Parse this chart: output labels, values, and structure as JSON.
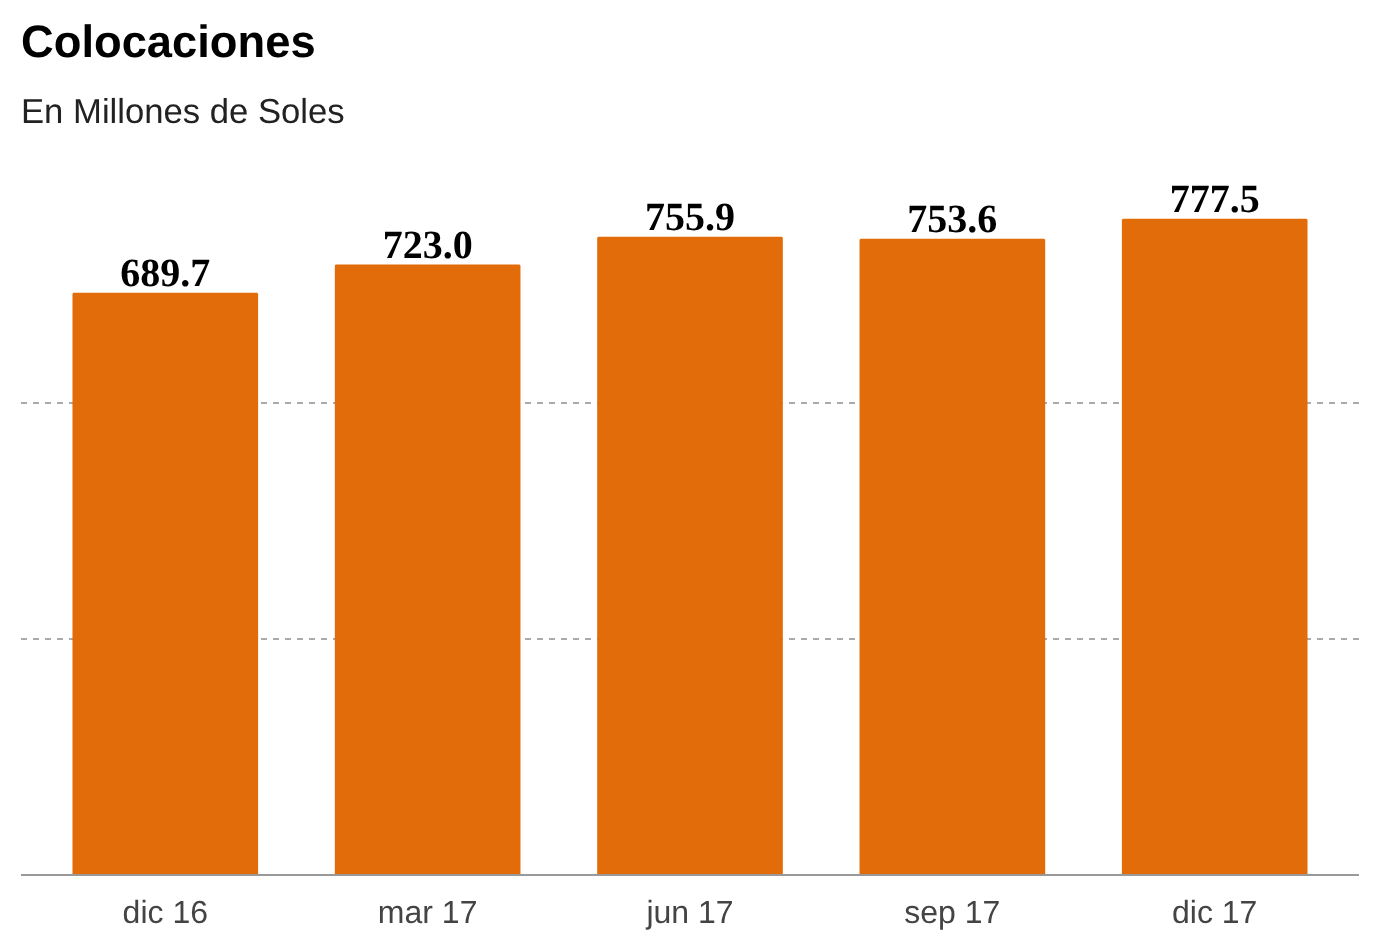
{
  "chart_data": {
    "type": "bar",
    "title": "Colocaciones",
    "subtitle": "En Millones de Soles",
    "categories": [
      "dic 16",
      "mar 17",
      "jun 17",
      "sep 17",
      "dic 17"
    ],
    "values": [
      689.7,
      723.0,
      755.9,
      753.6,
      777.5
    ],
    "value_labels": [
      "689.7",
      "723.0",
      "755.9",
      "753.6",
      "777.5"
    ],
    "color": "#e36c0a",
    "ref_lines": [
      {
        "axis": "y",
        "value": 280,
        "color": "#aaaaaa",
        "line_style": "dashed"
      },
      {
        "axis": "y",
        "value": 560,
        "color": "#aaaaaa",
        "line_style": "dashed"
      }
    ],
    "tick_labels": "x"
  }
}
